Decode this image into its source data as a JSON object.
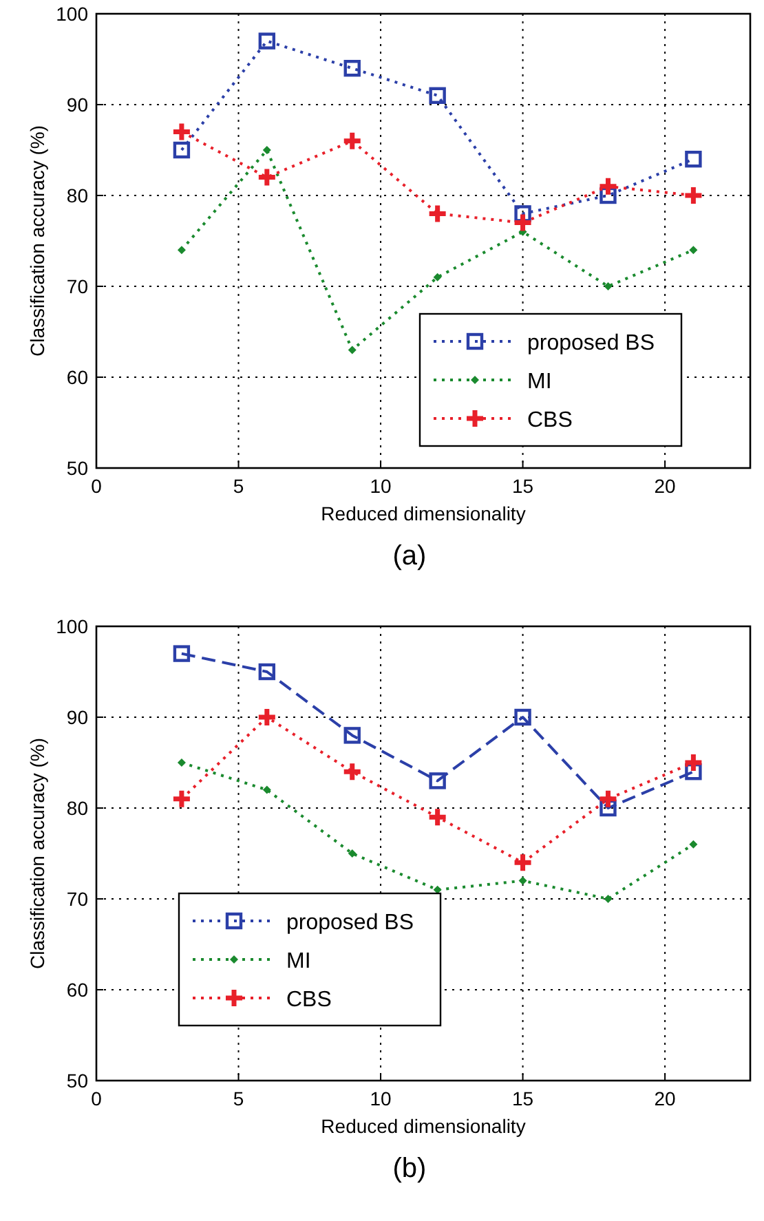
{
  "chart_data": [
    {
      "type": "line",
      "xlabel": "Reduced dimensionality",
      "ylabel": "Classification accuracy (%)",
      "annotations": [
        "(a)"
      ],
      "x": [
        3,
        6,
        9,
        12,
        15,
        18,
        21
      ],
      "xlim": [
        0,
        23
      ],
      "xticks": [
        0,
        5,
        10,
        15,
        20
      ],
      "ylim": [
        50,
        100
      ],
      "yticks": [
        50,
        60,
        70,
        80,
        90,
        100
      ],
      "grid": true,
      "legend": "bottom right",
      "series": [
        {
          "name": "proposed BS",
          "color": "#2b3fa8",
          "marker": "square",
          "line_style": "dotted",
          "values": [
            85,
            97,
            94,
            91,
            78,
            80,
            84
          ]
        },
        {
          "name": "MI",
          "color": "#1a8a2e",
          "marker": "diamond",
          "line_style": "dotted",
          "values": [
            74,
            85,
            63,
            71,
            76,
            70,
            74
          ]
        },
        {
          "name": "CBS",
          "color": "#e8202a",
          "marker": "cross",
          "line_style": "dotted",
          "values": [
            87,
            82,
            86,
            78,
            77,
            81,
            80
          ]
        }
      ]
    },
    {
      "type": "line",
      "xlabel": "Reduced dimensionality",
      "ylabel": "Classification accuracy (%)",
      "annotations": [
        "(b)"
      ],
      "x": [
        3,
        6,
        9,
        12,
        15,
        18,
        21
      ],
      "xlim": [
        0,
        23
      ],
      "xticks": [
        0,
        5,
        10,
        15,
        20
      ],
      "ylim": [
        50,
        100
      ],
      "yticks": [
        50,
        60,
        70,
        80,
        90,
        100
      ],
      "grid": true,
      "legend": "bottom left",
      "series": [
        {
          "name": "proposed BS",
          "color": "#2b3fa8",
          "marker": "square",
          "line_style": "dashed",
          "values": [
            97,
            95,
            88,
            83,
            90,
            80,
            84
          ]
        },
        {
          "name": "MI",
          "color": "#1a8a2e",
          "marker": "diamond",
          "line_style": "dotted",
          "values": [
            85,
            82,
            75,
            71,
            72,
            70,
            76
          ]
        },
        {
          "name": "CBS",
          "color": "#e8202a",
          "marker": "cross",
          "line_style": "dotted",
          "values": [
            81,
            90,
            84,
            79,
            74,
            81,
            85
          ]
        }
      ]
    }
  ]
}
